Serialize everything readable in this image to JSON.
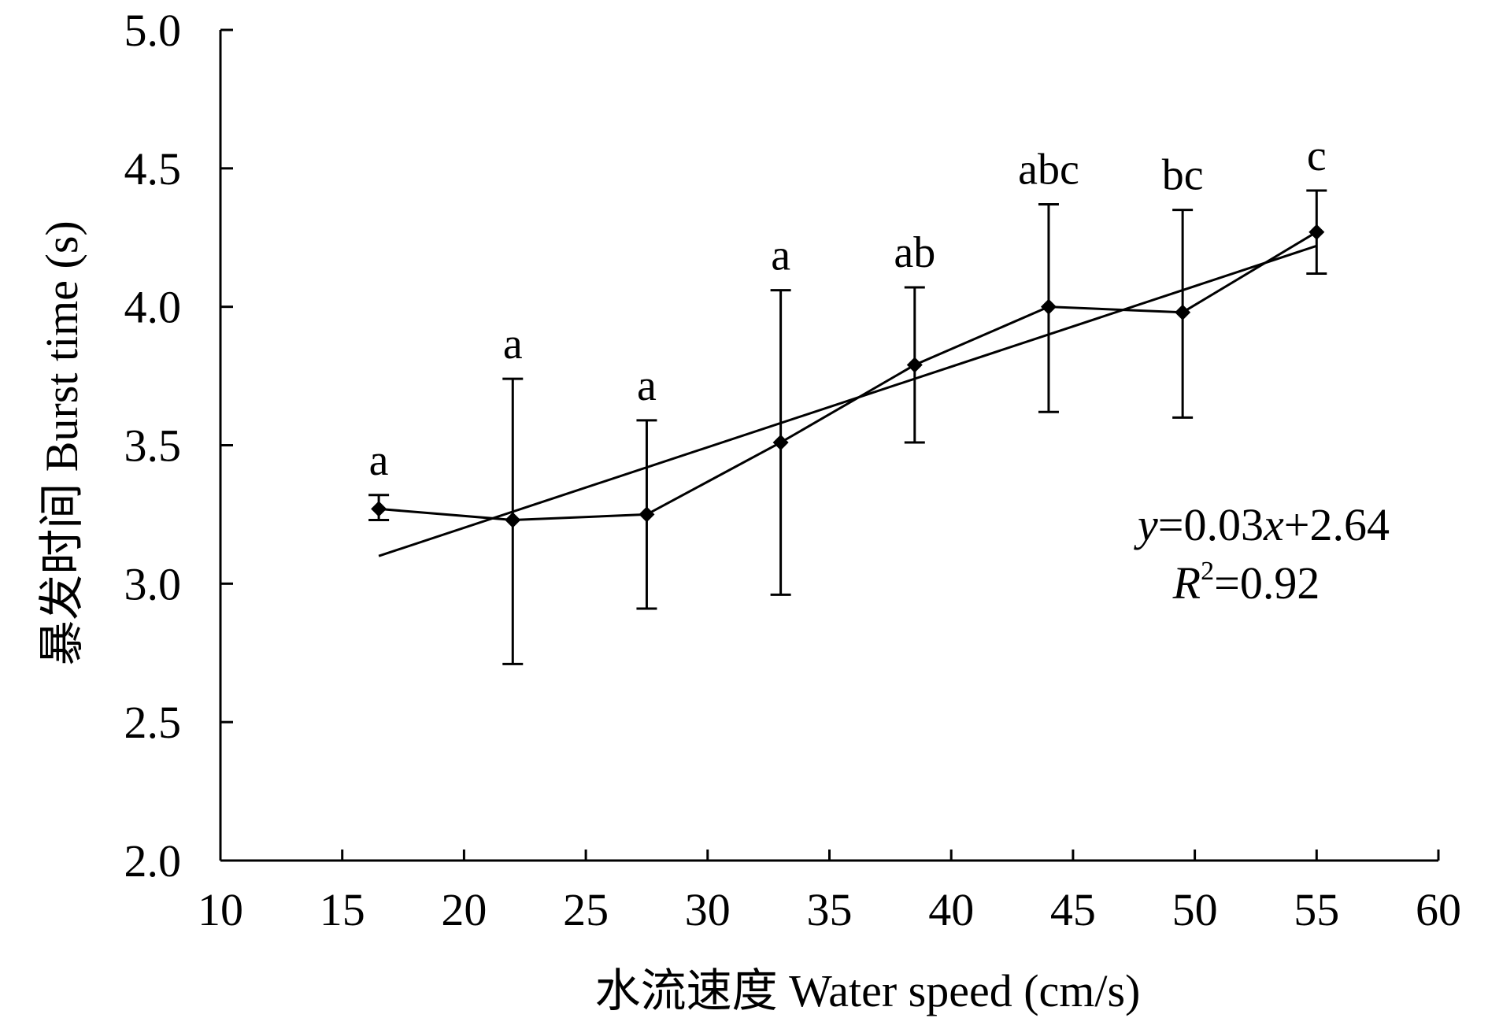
{
  "chart_data": {
    "type": "line",
    "title": "",
    "xlabel": "水流速度 Water speed (cm/s)",
    "ylabel": "暴发时间 Burst time (s)",
    "xlim": [
      10,
      60
    ],
    "ylim": [
      2.0,
      5.0
    ],
    "x_ticks": [
      10,
      15,
      20,
      25,
      30,
      35,
      40,
      45,
      50,
      55,
      60
    ],
    "y_ticks": [
      2.0,
      2.5,
      3.0,
      3.5,
      4.0,
      4.5,
      5.0
    ],
    "x_tick_labels": [
      "10",
      "15",
      "20",
      "25",
      "30",
      "35",
      "40",
      "45",
      "50",
      "55",
      "60"
    ],
    "y_tick_labels": [
      "2.0",
      "2.5",
      "3.0",
      "3.5",
      "4.0",
      "4.5",
      "5.0"
    ],
    "grid": false,
    "series": [
      {
        "name": "Burst time",
        "x": [
          16.5,
          22,
          27.5,
          33,
          38.5,
          44,
          49.5,
          55
        ],
        "values": [
          3.27,
          3.23,
          3.25,
          3.51,
          3.79,
          4.0,
          3.98,
          4.27
        ],
        "error_upper": [
          3.32,
          3.74,
          3.59,
          4.06,
          4.07,
          4.37,
          4.35,
          4.42
        ],
        "error_lower": [
          3.23,
          2.71,
          2.91,
          2.96,
          3.51,
          3.62,
          3.6,
          4.12
        ],
        "letters": [
          "a",
          "a",
          "a",
          "a",
          "ab",
          "abc",
          "bc",
          "c"
        ],
        "marker": "diamond"
      }
    ],
    "trendline": {
      "x_start": 16.5,
      "x_end": 55,
      "y_start": 3.1,
      "y_end": 4.22
    },
    "equation": {
      "y_var": "y",
      "eq_mid": "=0.03",
      "x_var": "x",
      "eq_tail": "+2.64",
      "r_var": "R",
      "r_sup": "2",
      "r_tail": "=0.92"
    }
  }
}
